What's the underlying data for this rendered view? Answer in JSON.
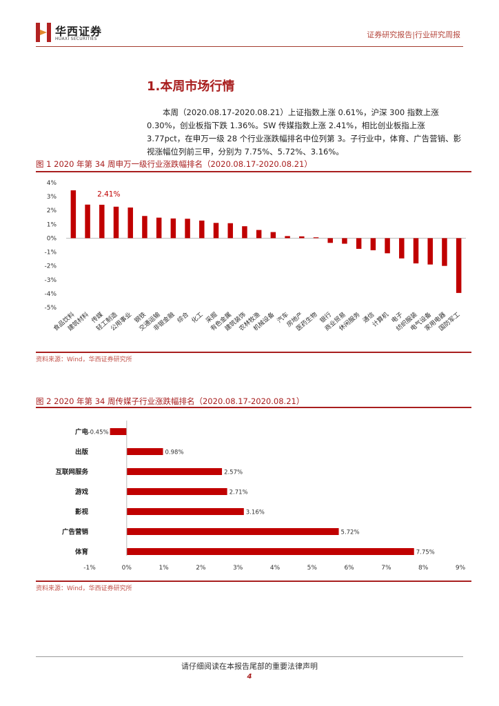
{
  "header": {
    "company_cn": "华西证券",
    "company_en": "HUAXI SECURITIES",
    "report_type": "证券研究报告|行业研究周报"
  },
  "section": {
    "title": "1.本周市场行情"
  },
  "summary": "本周（2020.08.17-2020.08.21）上证指数上涨 0.61%，沪深 300 指数上涨 0.30%，创业板指下跌 1.36%。SW 传媒指数上涨 2.41%，相比创业板指上涨 3.77pct，在申万一级 28 个行业涨跌幅排名中位列第 3。子行业中，体育、广告营销、影视涨幅位列前三甲，分别为 7.75%、5.72%、3.16%。",
  "figure1": {
    "title": "图 1 2020 年第 34 周申万一级行业涨跌幅排名（2020.08.17-2020.08.21）",
    "source": "资料来源：Wind，华西证券研究所"
  },
  "figure2": {
    "title": "图 2 2020 年第 34 周传媒子行业涨跌幅排名（2020.08.17-2020.08.21）",
    "source": "资料来源：Wind，华西证券研究所"
  },
  "chart_data": [
    {
      "type": "bar",
      "categories": [
        "食品饮料",
        "建筑材料",
        "传媒",
        "轻工制造",
        "公用事业",
        "钢铁",
        "交通运输",
        "非银金融",
        "综合",
        "化工",
        "采掘",
        "有色金属",
        "建筑装饰",
        "农林牧渔",
        "机械设备",
        "汽车",
        "房地产",
        "医药生物",
        "银行",
        "商业贸易",
        "休闲服务",
        "通信",
        "计算机",
        "电子",
        "纺织服装",
        "电气设备",
        "家用电器",
        "国防军工"
      ],
      "values": [
        3.45,
        2.42,
        2.41,
        2.27,
        2.21,
        1.6,
        1.48,
        1.42,
        1.4,
        1.27,
        1.1,
        1.08,
        0.86,
        0.59,
        0.44,
        0.15,
        0.13,
        0.06,
        -0.34,
        -0.4,
        -0.77,
        -0.87,
        -1.09,
        -1.46,
        -1.82,
        -1.9,
        -2.0,
        -3.95
      ],
      "yticks": [
        "4%",
        "3%",
        "2%",
        "1%",
        "0%",
        "-1%",
        "-2%",
        "-3%",
        "-4%",
        "-5%"
      ],
      "ylim": [
        -5,
        4
      ],
      "annotation": "2.41%",
      "bar_color": "#c00000",
      "grid": false
    },
    {
      "type": "bar",
      "orientation": "horizontal",
      "categories": [
        "广电",
        "出版",
        "互联网服务",
        "游戏",
        "影视",
        "广告营销",
        "体育"
      ],
      "values": [
        -0.45,
        0.98,
        2.57,
        2.71,
        3.16,
        5.72,
        7.75
      ],
      "data_labels": [
        "-0.45%",
        "0.98%",
        "2.57%",
        "2.71%",
        "3.16%",
        "5.72%",
        "7.75%"
      ],
      "xticks": [
        "-1%",
        "0%",
        "1%",
        "2%",
        "3%",
        "4%",
        "5%",
        "6%",
        "7%",
        "8%",
        "9%"
      ],
      "xlim": [
        -1,
        9
      ],
      "bar_color": "#c00000",
      "grid": false
    }
  ],
  "footer": {
    "disclaimer": "请仔细阅读在本报告尾部的重要法律声明",
    "page_number": "4"
  }
}
